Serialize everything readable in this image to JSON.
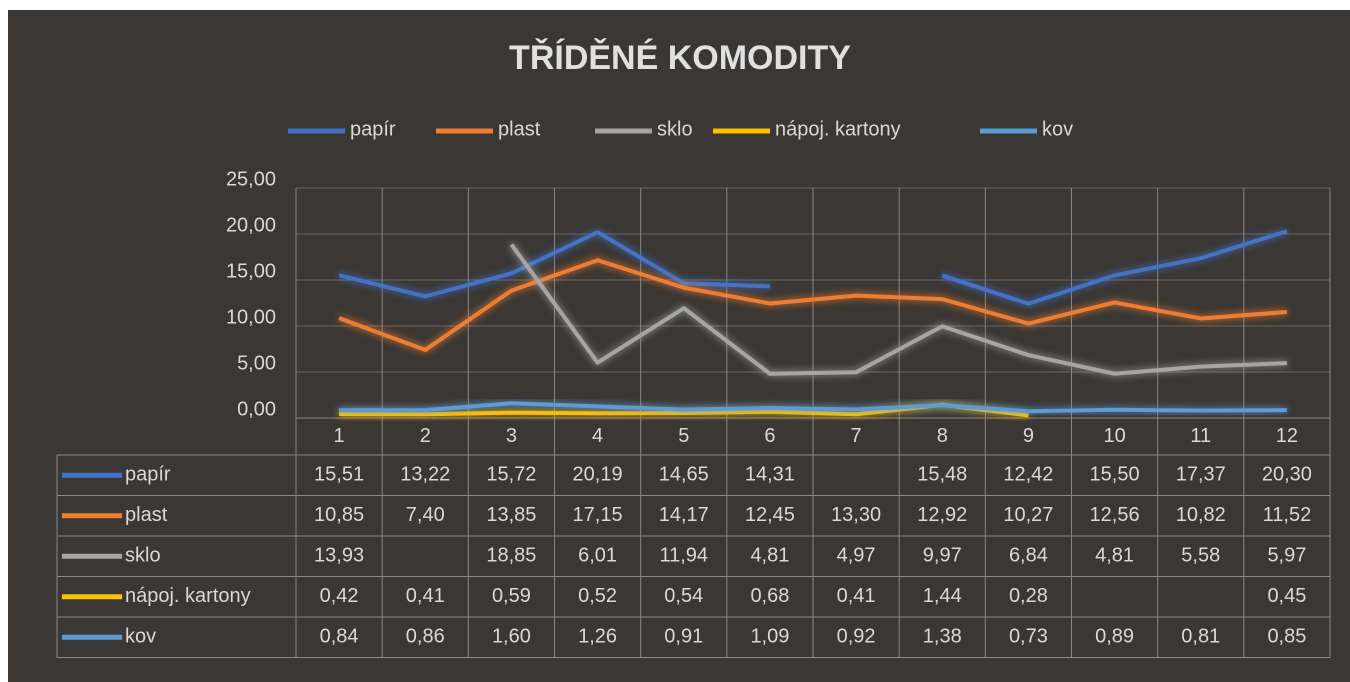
{
  "chart_data": {
    "type": "line",
    "title": "TŘÍDĚNÉ KOMODITY",
    "categories": [
      "1",
      "2",
      "3",
      "4",
      "5",
      "6",
      "7",
      "8",
      "9",
      "10",
      "11",
      "12"
    ],
    "series": [
      {
        "name": "papír",
        "color": "#4472c4",
        "values": [
          15.51,
          13.22,
          15.72,
          20.19,
          14.65,
          14.31,
          null,
          15.48,
          12.42,
          15.5,
          17.37,
          20.3
        ],
        "value_labels": [
          "15,51",
          "13,22",
          "15,72",
          "20,19",
          "14,65",
          "14,31",
          null,
          "15,48",
          "12,42",
          "15,50",
          "17,37",
          "20,30"
        ]
      },
      {
        "name": "plast",
        "color": "#ed7d31",
        "values": [
          10.85,
          7.4,
          13.85,
          17.15,
          14.17,
          12.45,
          13.3,
          12.92,
          10.27,
          12.56,
          10.82,
          11.52
        ],
        "value_labels": [
          "10,85",
          "7,40",
          "13,85",
          "17,15",
          "14,17",
          "12,45",
          "13,30",
          "12,92",
          "10,27",
          "12,56",
          "10,82",
          "11,52"
        ]
      },
      {
        "name": "sklo",
        "color": "#a5a5a5",
        "values": [
          13.93,
          null,
          18.85,
          6.01,
          11.94,
          4.81,
          4.97,
          9.97,
          6.84,
          4.81,
          5.58,
          5.97
        ],
        "value_labels": [
          "13,93",
          null,
          "18,85",
          "6,01",
          "11,94",
          "4,81",
          "4,97",
          "9,97",
          "6,84",
          "4,81",
          "5,58",
          "5,97"
        ]
      },
      {
        "name": "nápoj. kartony",
        "color": "#ffc000",
        "values": [
          0.42,
          0.41,
          0.59,
          0.52,
          0.54,
          0.68,
          0.41,
          1.44,
          0.28,
          null,
          null,
          0.45
        ],
        "value_labels": [
          "0,42",
          "0,41",
          "0,59",
          "0,52",
          "0,54",
          "0,68",
          "0,41",
          "1,44",
          "0,28",
          null,
          null,
          "0,45"
        ]
      },
      {
        "name": "kov",
        "color": "#5b9bd5",
        "values": [
          0.84,
          0.86,
          1.6,
          1.26,
          0.91,
          1.09,
          0.92,
          1.38,
          0.73,
          0.89,
          0.81,
          0.85
        ],
        "value_labels": [
          "0,84",
          "0,86",
          "1,60",
          "1,26",
          "0,91",
          "1,09",
          "0,92",
          "1,38",
          "0,73",
          "0,89",
          "0,81",
          "0,85"
        ]
      }
    ],
    "ylim": [
      0,
      25
    ],
    "yticks": [
      {
        "value": 0,
        "label": "0,00"
      },
      {
        "value": 5,
        "label": "5,00"
      },
      {
        "value": 10,
        "label": "10,00"
      },
      {
        "value": 15,
        "label": "15,00"
      },
      {
        "value": 20,
        "label": "20,00"
      },
      {
        "value": 25,
        "label": "25,00"
      }
    ],
    "grid": true,
    "legend": "top"
  }
}
